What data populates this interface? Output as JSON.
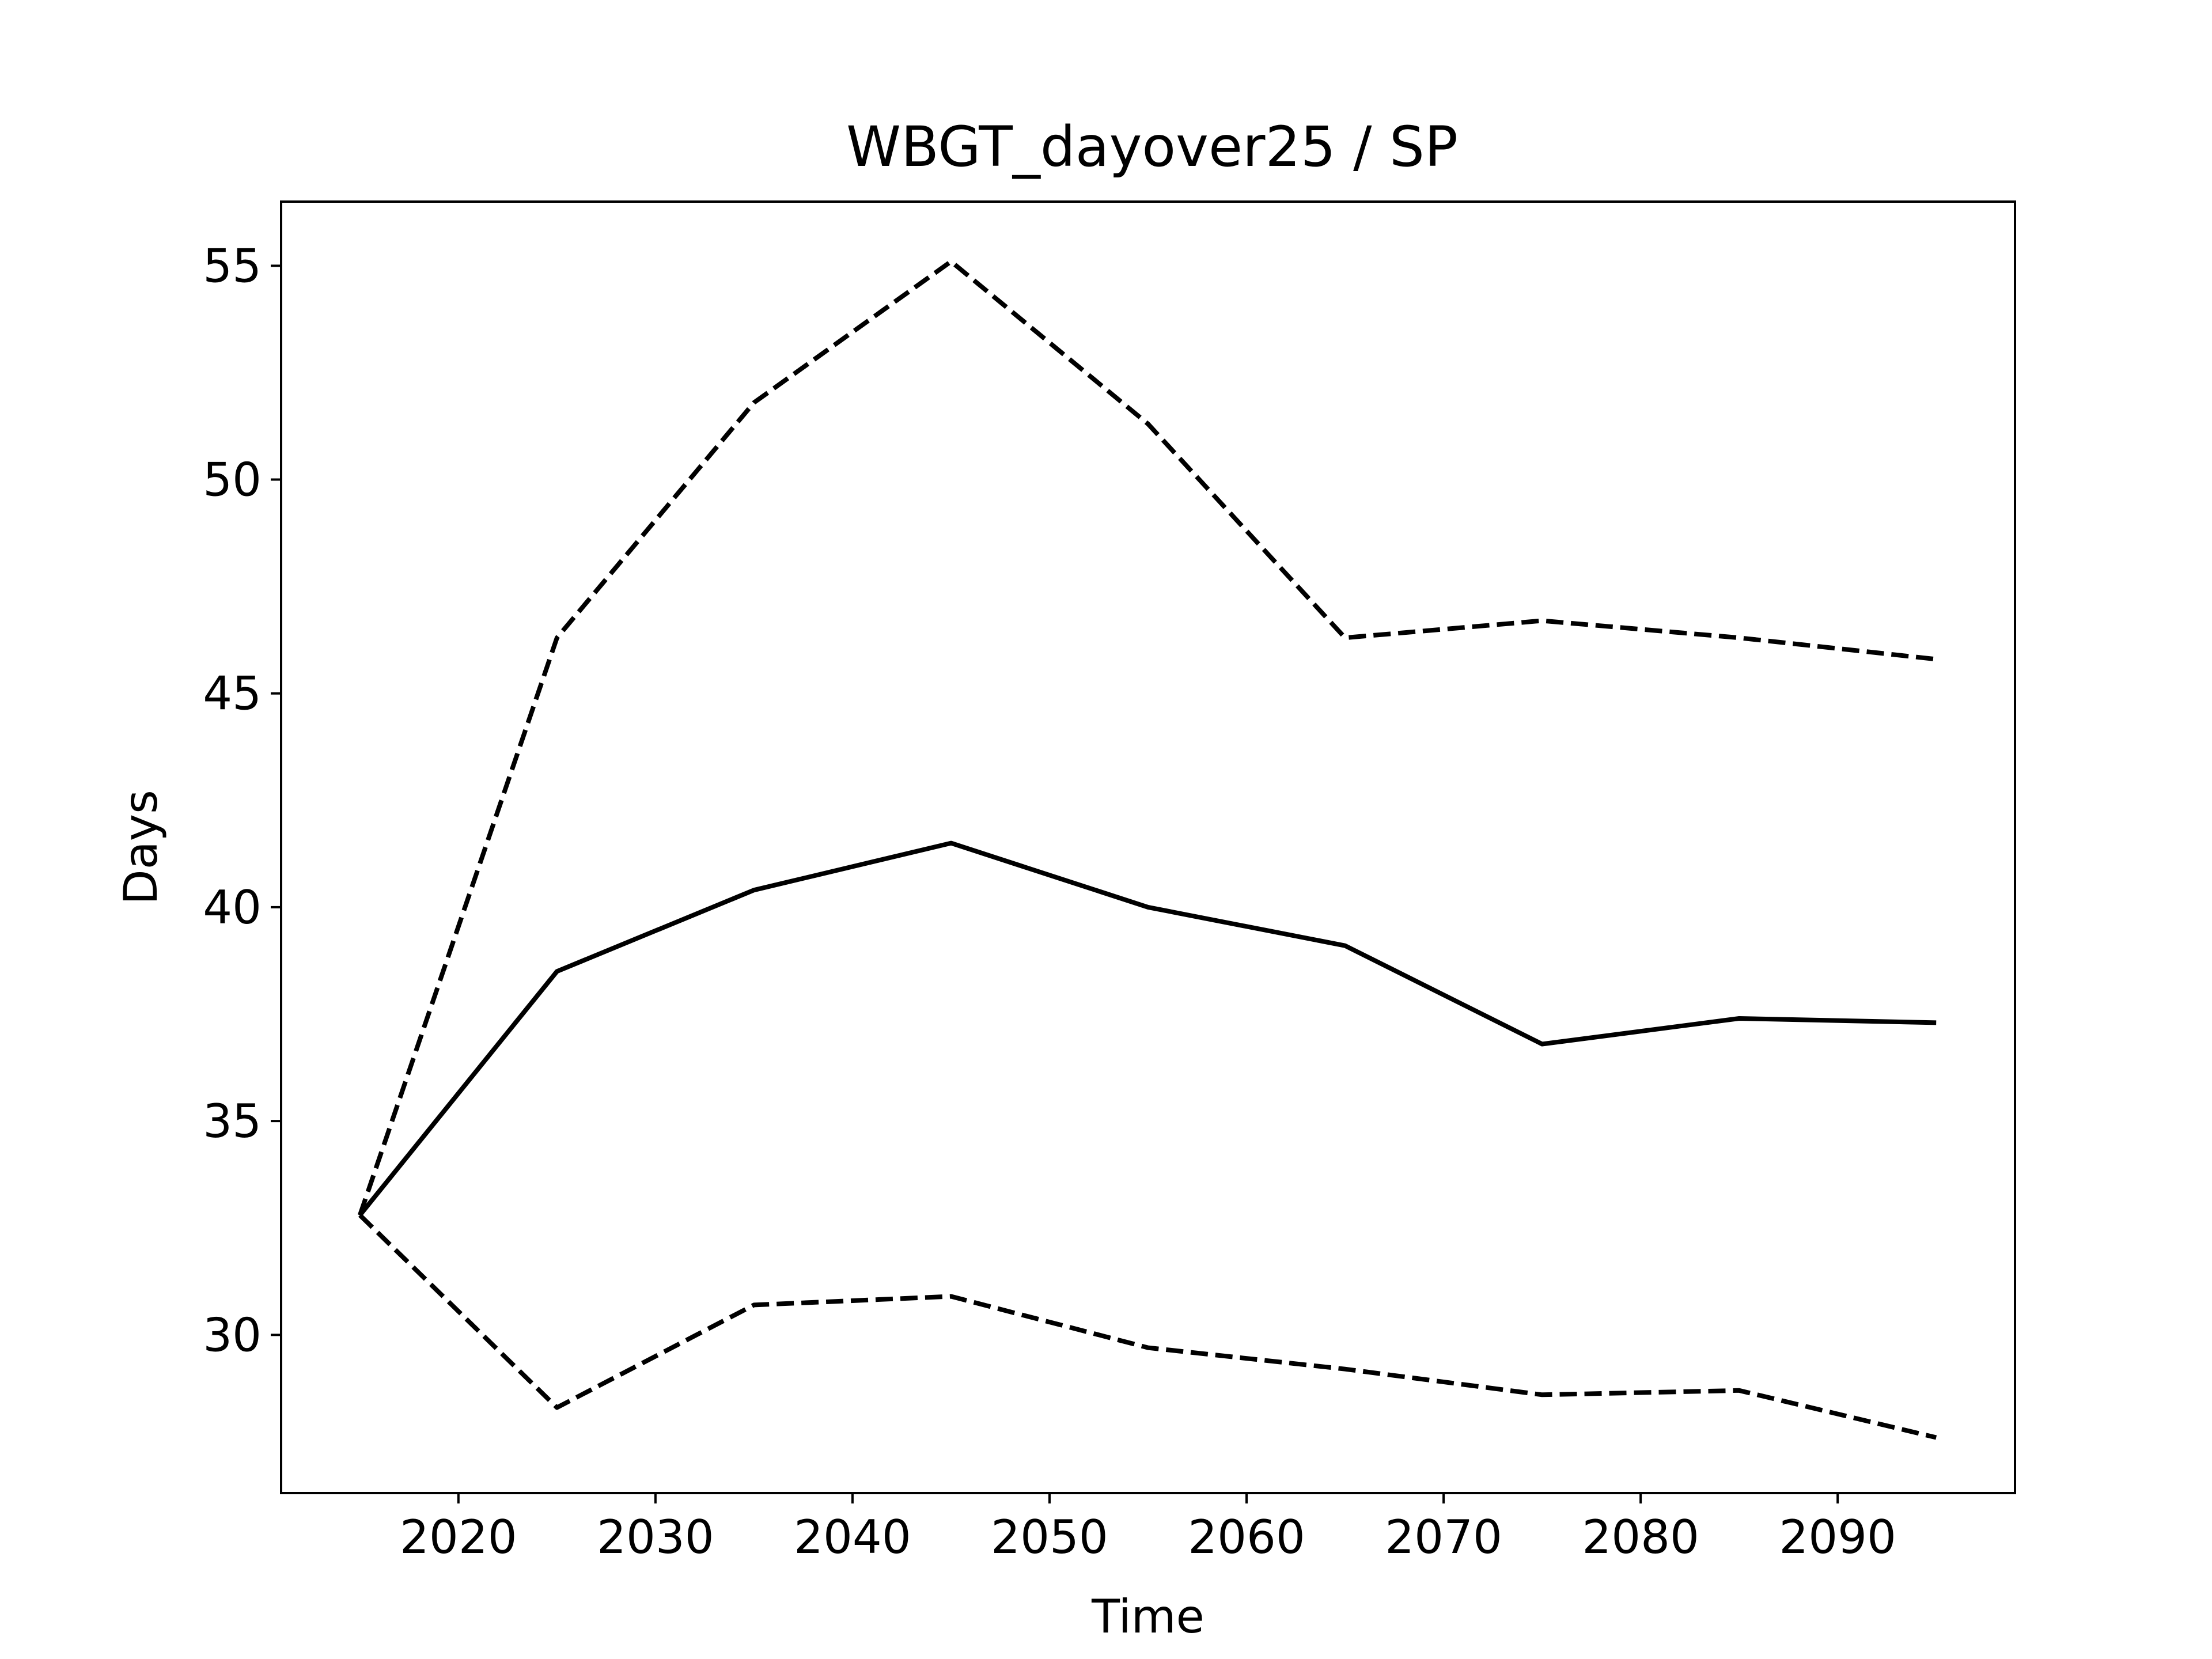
{
  "chart_data": {
    "type": "line",
    "title": "WBGT_dayover25 / SP",
    "xlabel": "Time",
    "ylabel": "Days",
    "xlim": [
      2011,
      2099
    ],
    "ylim": [
      26.3,
      56.5
    ],
    "x_ticks": [
      2020,
      2030,
      2040,
      2050,
      2060,
      2070,
      2080,
      2090
    ],
    "y_ticks": [
      30,
      35,
      40,
      45,
      50,
      55
    ],
    "grid": false,
    "x": [
      2015,
      2025,
      2035,
      2045,
      2055,
      2065,
      2075,
      2085,
      2095
    ],
    "series": [
      {
        "style": "solid",
        "color": "#000000",
        "values": [
          32.8,
          38.5,
          40.4,
          41.5,
          40.0,
          39.1,
          36.8,
          37.4,
          37.3
        ]
      },
      {
        "style": "dashed",
        "color": "#000000",
        "values": [
          32.8,
          46.3,
          51.8,
          55.1,
          51.3,
          46.3,
          46.7,
          46.3,
          45.8
        ]
      },
      {
        "style": "dashed",
        "color": "#000000",
        "values": [
          32.8,
          28.3,
          30.7,
          30.9,
          29.7,
          29.2,
          28.6,
          28.7,
          27.6
        ]
      }
    ]
  }
}
